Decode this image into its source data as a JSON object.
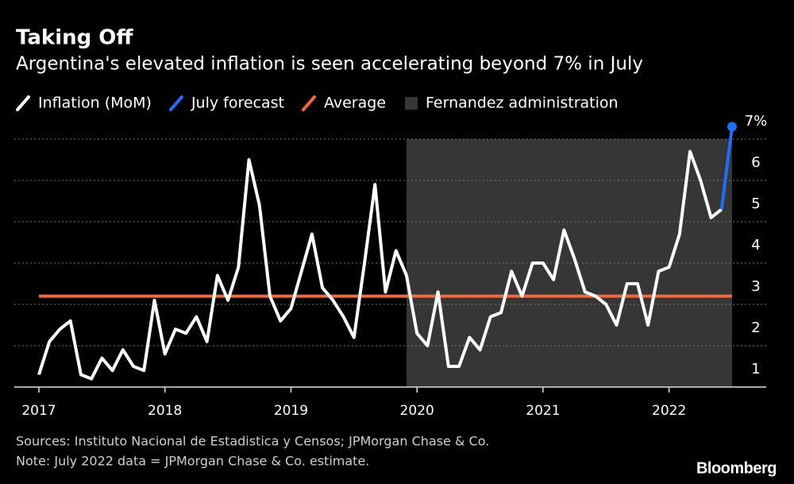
{
  "chart_data": {
    "type": "line",
    "title": "Taking Off",
    "subtitle": "Argentina's elevated inflation is seen accelerating beyond 7% in July",
    "categories": [
      "2017",
      null,
      null,
      null,
      null,
      null,
      null,
      null,
      null,
      null,
      null,
      null,
      "2018",
      null,
      null,
      null,
      null,
      null,
      null,
      null,
      null,
      null,
      null,
      null,
      "2019",
      null,
      null,
      null,
      null,
      null,
      null,
      null,
      null,
      null,
      null,
      null,
      "2020",
      null,
      null,
      null,
      null,
      null,
      null,
      null,
      null,
      null,
      null,
      null,
      "2021",
      null,
      null,
      null,
      null,
      null,
      null,
      null,
      null,
      null,
      null,
      null,
      "2022",
      null,
      null,
      null,
      null,
      null,
      null
    ],
    "series": [
      {
        "name": "Inflation (MoM)",
        "color": "#ffffff",
        "values": [
          1.3,
          2.1,
          2.4,
          2.6,
          1.3,
          1.2,
          1.7,
          1.4,
          1.9,
          1.5,
          1.4,
          3.1,
          1.8,
          2.4,
          2.3,
          2.7,
          2.1,
          3.7,
          3.1,
          3.9,
          6.5,
          5.4,
          3.2,
          2.6,
          2.9,
          3.8,
          4.7,
          3.4,
          3.1,
          2.7,
          2.2,
          4.0,
          5.9,
          3.3,
          4.3,
          3.7,
          2.3,
          2.0,
          3.3,
          1.5,
          1.5,
          2.2,
          1.9,
          2.7,
          2.8,
          3.8,
          3.2,
          4.0,
          4.0,
          3.6,
          4.8,
          4.1,
          3.3,
          3.2,
          3.0,
          2.5,
          3.5,
          3.5,
          2.5,
          3.8,
          3.9,
          4.7,
          6.7,
          6.0,
          5.1,
          5.3,
          null
        ]
      },
      {
        "name": "July forecast",
        "color": "#1f6fff",
        "marker_last": true,
        "values": [
          null,
          null,
          null,
          null,
          null,
          null,
          null,
          null,
          null,
          null,
          null,
          null,
          null,
          null,
          null,
          null,
          null,
          null,
          null,
          null,
          null,
          null,
          null,
          null,
          null,
          null,
          null,
          null,
          null,
          null,
          null,
          null,
          null,
          null,
          null,
          null,
          null,
          null,
          null,
          null,
          null,
          null,
          null,
          null,
          null,
          null,
          null,
          null,
          null,
          null,
          null,
          null,
          null,
          null,
          null,
          null,
          null,
          null,
          null,
          null,
          null,
          null,
          null,
          null,
          null,
          5.3,
          7.3
        ]
      }
    ],
    "average": {
      "name": "Average",
      "color": "#f2683c",
      "value": 3.2
    },
    "highlight": {
      "name": "Fernandez administration",
      "color": "#363636",
      "from": 35,
      "to": 66
    },
    "ylim": [
      1,
      7.5
    ],
    "yticks": [
      1,
      2,
      3,
      4,
      5,
      6,
      {
        "value": 7,
        "label": "7%"
      }
    ],
    "grid": true,
    "source": "Sources: Instituto Nacional de Estadistica y Censos; JPMorgan Chase & Co.",
    "note": "Note: July 2022 data = JPMorgan Chase & Co. estimate.",
    "logo": "Bloomberg"
  }
}
